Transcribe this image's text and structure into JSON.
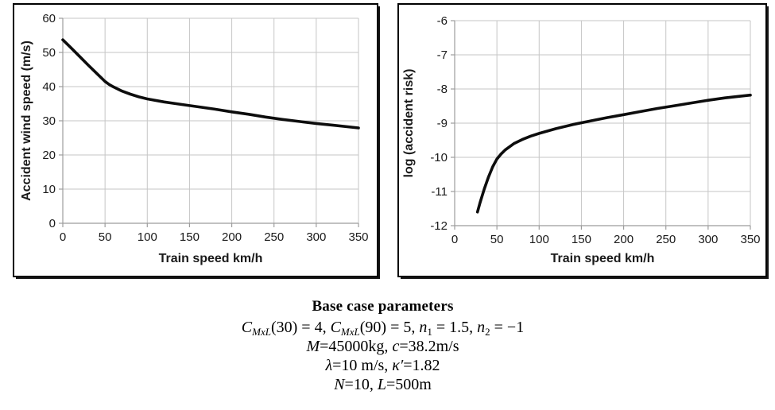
{
  "figure": {
    "background": "#ffffff",
    "border_color": "#000000",
    "curve_color": "#0d0d0d",
    "grid_color": "#c6c6c6",
    "axis_color": "#9c9c9c",
    "text_color": "#1a1a1a"
  },
  "chart_data": [
    {
      "type": "line",
      "name": "accident-wind-speed-vs-train-speed",
      "title": "",
      "xlabel": "Train speed km/h",
      "ylabel": "Accident wind speed (m/s)",
      "xlim": [
        0,
        350
      ],
      "ylim": [
        0,
        60
      ],
      "xticks": [
        0,
        50,
        100,
        150,
        200,
        250,
        300,
        350
      ],
      "yticks": [
        0,
        10,
        20,
        30,
        40,
        50,
        60
      ],
      "grid": true,
      "legend": "none",
      "x": [
        0,
        10,
        20,
        30,
        40,
        50,
        55,
        60,
        70,
        80,
        90,
        100,
        120,
        140,
        160,
        180,
        200,
        220,
        240,
        260,
        280,
        300,
        320,
        350
      ],
      "y": [
        53.7,
        51.3,
        48.8,
        46.3,
        43.9,
        41.5,
        40.6,
        39.9,
        38.7,
        37.8,
        37.0,
        36.4,
        35.5,
        34.8,
        34.1,
        33.4,
        32.6,
        31.9,
        31.1,
        30.4,
        29.8,
        29.2,
        28.7,
        27.9
      ]
    },
    {
      "type": "line",
      "name": "log-accident-risk-vs-train-speed",
      "title": "",
      "xlabel": "Train speed km/h",
      "ylabel": "log (accident risk)",
      "xlim": [
        0,
        350
      ],
      "ylim": [
        -12,
        -6
      ],
      "xticks": [
        0,
        50,
        100,
        150,
        200,
        250,
        300,
        350
      ],
      "yticks": [
        -12,
        -11,
        -10,
        -9,
        -8,
        -7,
        -6
      ],
      "grid": true,
      "legend": "none",
      "x": [
        27,
        30,
        35,
        40,
        45,
        50,
        55,
        60,
        70,
        80,
        90,
        100,
        120,
        140,
        160,
        180,
        200,
        220,
        240,
        260,
        280,
        300,
        320,
        350
      ],
      "y": [
        -11.6,
        -11.33,
        -10.93,
        -10.58,
        -10.28,
        -10.05,
        -9.9,
        -9.78,
        -9.6,
        -9.48,
        -9.38,
        -9.3,
        -9.16,
        -9.04,
        -8.94,
        -8.84,
        -8.75,
        -8.66,
        -8.57,
        -8.49,
        -8.41,
        -8.33,
        -8.26,
        -8.18
      ]
    }
  ],
  "params": {
    "title": "Base case parameters",
    "line1": {
      "c1": "C",
      "c1sub": "MxL",
      "t1": "(30) = 4, ",
      "c2": "C",
      "c2sub": "MxL",
      "t2": "(90) = 5, ",
      "n1": "n",
      "n1sub": "1",
      "t3": " = 1.5, ",
      "n2": "n",
      "n2sub": "2",
      "t4": " = −1"
    },
    "line2": {
      "v1": "M",
      "t1": "=45000kg, ",
      "v2": "c",
      "t2": "=38.2m/s"
    },
    "line3": {
      "v1": "λ",
      "t1": "=10 m/s, ",
      "v2": "κ′",
      "t2": "=1.82"
    },
    "line4": {
      "v1": "N",
      "t1": "=10, ",
      "v2": "L",
      "t2": "=500m"
    }
  }
}
